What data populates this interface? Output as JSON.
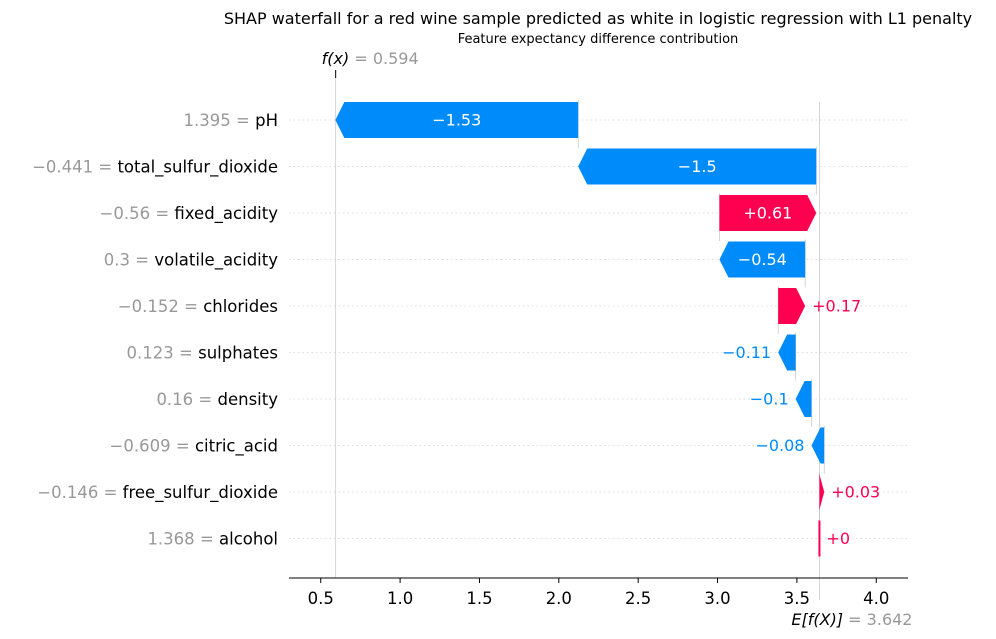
{
  "chart_data": {
    "type": "waterfall",
    "title": "SHAP waterfall for a red wine sample predicted as white in logistic regression with L1 penalty",
    "subtitle": "Feature expectancy difference contribution",
    "fx": {
      "label": "f(x)",
      "value": 0.594,
      "value_label": "0.594"
    },
    "base": {
      "label": "E[f(X)]",
      "value": 3.642,
      "value_label": "3.642"
    },
    "xlim": [
      0.3,
      4.2
    ],
    "xticks": [
      0.5,
      1.0,
      1.5,
      2.0,
      2.5,
      3.0,
      3.5,
      4.0
    ],
    "xtick_labels": [
      "0.5",
      "1.0",
      "1.5",
      "2.0",
      "2.5",
      "3.0",
      "3.5",
      "4.0"
    ],
    "features": [
      {
        "name": "pH",
        "value_label": "1.395",
        "shap": -1.53,
        "label": "−1.53"
      },
      {
        "name": "total_sulfur_dioxide",
        "value_label": "−0.441",
        "shap": -1.5,
        "label": "−1.5"
      },
      {
        "name": "fixed_acidity",
        "value_label": "−0.56",
        "shap": 0.61,
        "label": "+0.61"
      },
      {
        "name": "volatile_acidity",
        "value_label": "0.3",
        "shap": -0.54,
        "label": "−0.54"
      },
      {
        "name": "chlorides",
        "value_label": "−0.152",
        "shap": 0.17,
        "label": "+0.17"
      },
      {
        "name": "sulphates",
        "value_label": "0.123",
        "shap": -0.11,
        "label": "−0.11"
      },
      {
        "name": "density",
        "value_label": "0.16",
        "shap": -0.1,
        "label": "−0.1"
      },
      {
        "name": "citric_acid",
        "value_label": "−0.609",
        "shap": -0.08,
        "label": "−0.08"
      },
      {
        "name": "free_sulfur_dioxide",
        "value_label": "−0.146",
        "shap": 0.03,
        "label": "+0.03"
      },
      {
        "name": "alcohol",
        "value_label": "1.368",
        "shap": 0.0,
        "label": "+0"
      }
    ],
    "colors": {
      "positive": "#ff0051",
      "negative": "#008bfb",
      "grid": "#cccccc",
      "axis": "#000000",
      "value_text": "#999999"
    }
  }
}
